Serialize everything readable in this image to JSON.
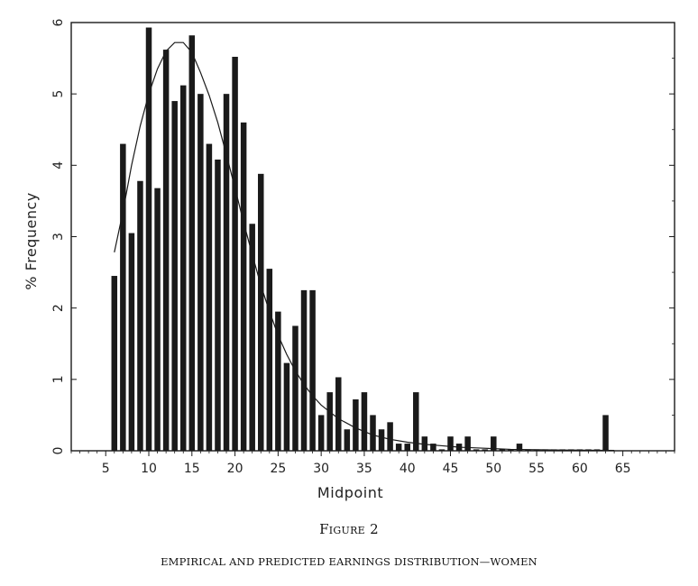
{
  "figure": {
    "label": "Figure 2",
    "caption": "EMPIRICAL AND PREDICTED EARNINGS DISTRIBUTION—WOMEN"
  },
  "chart_data": {
    "type": "bar",
    "title": "",
    "xlabel": "Midpoint",
    "ylabel": "% Frequency",
    "xlim": [
      1,
      71
    ],
    "ylim": [
      0,
      6
    ],
    "xticks": [
      5,
      10,
      15,
      20,
      25,
      30,
      35,
      40,
      45,
      50,
      55,
      60,
      65
    ],
    "yticks": [
      0,
      1,
      2,
      3,
      4,
      5,
      6
    ],
    "grid": false,
    "legend": "none",
    "bar_color": "#1a1a1a",
    "line_color": "#1a1a1a",
    "series": [
      {
        "kind": "bar",
        "x": [
          6,
          7,
          8,
          9,
          10,
          11,
          12,
          13,
          14,
          15,
          16,
          17,
          18,
          19,
          20,
          21,
          22,
          23,
          24,
          25,
          26,
          27,
          28,
          29,
          30,
          31,
          32,
          33,
          34,
          35,
          36,
          37,
          38,
          39,
          40,
          41,
          42,
          43,
          44,
          45,
          46,
          47,
          48,
          49,
          50,
          51,
          52,
          53,
          54,
          55,
          56,
          57,
          58,
          59,
          60,
          61,
          62,
          63
        ],
        "values": [
          2.45,
          4.3,
          3.05,
          3.78,
          5.93,
          3.68,
          5.62,
          4.9,
          5.12,
          5.82,
          5.0,
          4.3,
          4.08,
          5.0,
          5.52,
          4.6,
          3.18,
          3.88,
          2.55,
          1.95,
          1.23,
          1.75,
          2.25,
          2.25,
          0.5,
          0.82,
          1.03,
          0.3,
          0.72,
          0.82,
          0.5,
          0.3,
          0.4,
          0.1,
          0.1,
          0.82,
          0.2,
          0.1,
          0.02,
          0.2,
          0.1,
          0.2,
          0.02,
          0.02,
          0.2,
          0.02,
          0.02,
          0.1,
          0.02,
          0.02,
          0.02,
          0.02,
          0.02,
          0.02,
          0.02,
          0.02,
          0.02,
          0.5
        ]
      },
      {
        "kind": "line",
        "x": [
          6,
          7,
          8,
          9,
          10,
          11,
          12,
          13,
          14,
          15,
          16,
          17,
          18,
          19,
          20,
          21,
          22,
          23,
          24,
          25,
          26,
          27,
          28,
          29,
          30,
          32,
          34,
          36,
          38,
          40,
          42,
          44,
          46,
          48,
          50,
          52,
          55,
          58,
          61,
          64
        ],
        "values": [
          2.78,
          3.35,
          4.0,
          4.55,
          5.0,
          5.35,
          5.6,
          5.72,
          5.72,
          5.58,
          5.3,
          4.98,
          4.6,
          4.15,
          3.68,
          3.2,
          2.75,
          2.32,
          1.95,
          1.62,
          1.35,
          1.12,
          0.93,
          0.77,
          0.64,
          0.45,
          0.32,
          0.22,
          0.16,
          0.12,
          0.09,
          0.07,
          0.05,
          0.04,
          0.03,
          0.02,
          0.015,
          0.01,
          0.008,
          0.005
        ]
      }
    ]
  }
}
